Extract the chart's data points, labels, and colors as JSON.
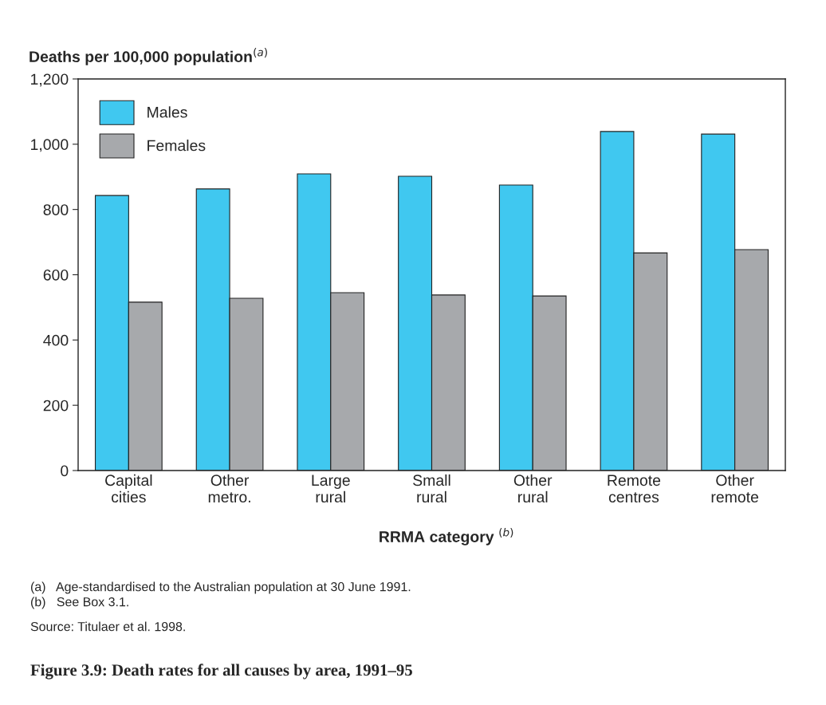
{
  "chart_data": {
    "type": "bar",
    "title": "Figure 3.9: Death rates for all causes by area, 1991–95",
    "ylabel": "Deaths per 100,000 population$^{(a)}$",
    "xlabel": "RRMA category $^{(b)}$",
    "categories": [
      "Capital\ncities",
      "Other\nmetro.",
      "Large\nrural",
      "Small\nrural",
      "Other\nrural",
      "Remote\ncentres",
      "Other\nremote"
    ],
    "series": [
      {
        "name": "Males",
        "color": "#40c8f0",
        "values": [
          843,
          863,
          909,
          902,
          875,
          1039,
          1031
        ]
      },
      {
        "name": "Females",
        "color": "#a7a9ac",
        "values": [
          516,
          528,
          545,
          538,
          535,
          667,
          677
        ]
      }
    ],
    "ylim": [
      0,
      1200
    ],
    "yticks": [
      0,
      200,
      400,
      600,
      800,
      {
        "value": 1000,
        "label": "1,000"
      },
      {
        "value": 1200,
        "label": "1,200"
      }
    ],
    "grid": false,
    "legend": "top left",
    "annotations": [
      "(a)   Age-standardised to the Australian population at 30 June 1991.",
      "(b)   See Box 3.1.",
      "Source: Titulaer et al. 1998."
    ]
  }
}
